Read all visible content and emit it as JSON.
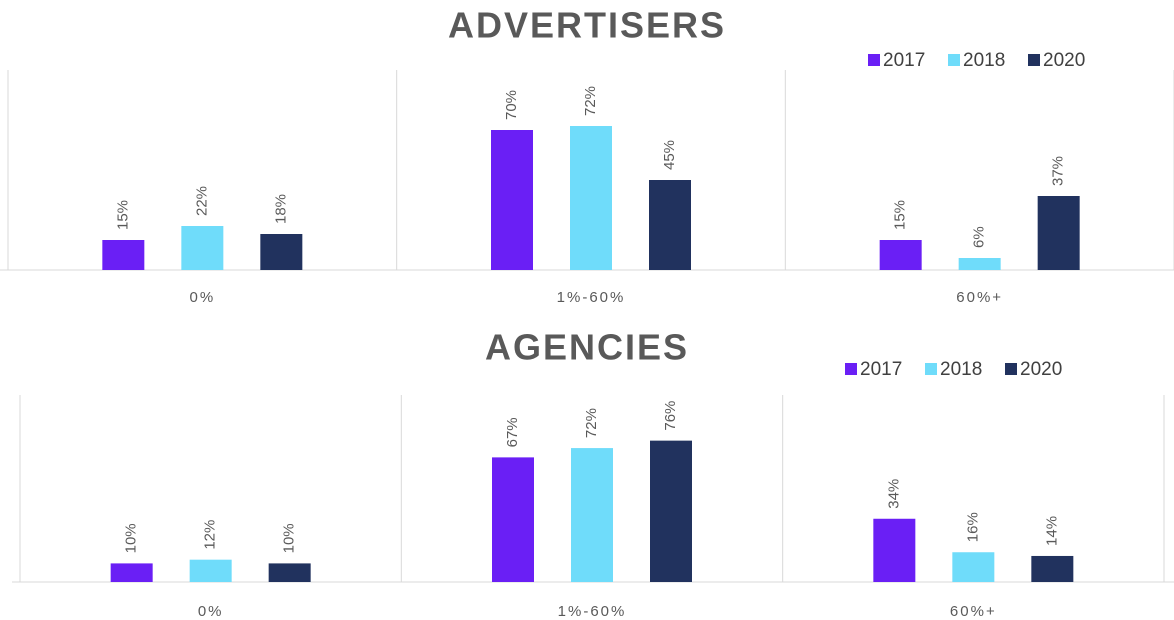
{
  "chart_data": [
    {
      "type": "bar",
      "title": "ADVERTISERS",
      "categories": [
        "0%",
        "1%-60%",
        "60%+"
      ],
      "series": [
        {
          "name": "2017",
          "color": "#6a1ff5",
          "values": [
            15,
            70,
            15
          ],
          "value_labels": [
            "15%",
            "70%",
            "15%"
          ]
        },
        {
          "name": "2018",
          "color": "#6fdcfa",
          "values": [
            22,
            72,
            6
          ],
          "value_labels": [
            "22%",
            "72%",
            "6%"
          ]
        },
        {
          "name": "2020",
          "color": "#21325e",
          "values": [
            18,
            45,
            37
          ],
          "value_labels": [
            "18%",
            "45%",
            "37%"
          ]
        }
      ]
    },
    {
      "type": "bar",
      "title": "AGENCIES",
      "categories": [
        "0%",
        "1%-60%",
        "60%+"
      ],
      "series": [
        {
          "name": "2017",
          "color": "#6a1ff5",
          "values": [
            10,
            67,
            34
          ],
          "value_labels": [
            "10%",
            "67%",
            "34%"
          ]
        },
        {
          "name": "2018",
          "color": "#6fdcfa",
          "values": [
            12,
            72,
            16
          ],
          "value_labels": [
            "12%",
            "72%",
            "16%"
          ]
        },
        {
          "name": "2020",
          "color": "#21325e",
          "values": [
            10,
            76,
            14
          ],
          "value_labels": [
            "10%",
            "76%",
            "14%"
          ]
        }
      ]
    }
  ]
}
